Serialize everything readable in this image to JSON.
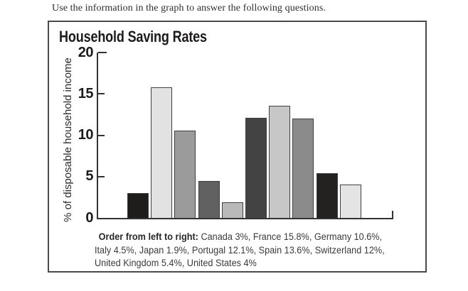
{
  "instruction": "Use the information in the graph to answer the following questions.",
  "chart": {
    "title": "Household Saving Rates",
    "ylabel": "% of disposable household income",
    "yticks_display": [
      "20",
      "15",
      "10",
      "5",
      "0"
    ],
    "caption": {
      "bold": "Order from left to right:",
      "line1_rest": " Canada 3%, France 15.8%, Germany 10.6%,",
      "line2": "Italy 4.5%, Japan 1.9%, Portugal 12.1%, Spain 13.6%, Switzerland 12%,",
      "line3": "United Kingdom 5.4%, United States 4%"
    }
  },
  "chart_data": {
    "type": "bar",
    "title": "Household Saving Rates",
    "xlabel": "",
    "ylabel": "% of disposable household income",
    "categories": [
      "Canada",
      "France",
      "Germany",
      "Italy",
      "Japan",
      "Portugal",
      "Spain",
      "Switzerland",
      "United Kingdom",
      "United States"
    ],
    "values": [
      3,
      15.8,
      10.6,
      4.5,
      1.9,
      12.1,
      13.6,
      12,
      5.4,
      4
    ],
    "bar_colors": [
      "#1f1c1c",
      "#e2e2e2",
      "#9b9b9b",
      "#616161",
      "#b9b9b9",
      "#434343",
      "#c7c7c7",
      "#8b8b8b",
      "#242121",
      "#e4e4e4"
    ],
    "ylim": [
      0,
      20
    ],
    "yticks": [
      0,
      5,
      10,
      15,
      20
    ],
    "grid": false,
    "legend": false,
    "x_axis_labels_shown": false
  }
}
